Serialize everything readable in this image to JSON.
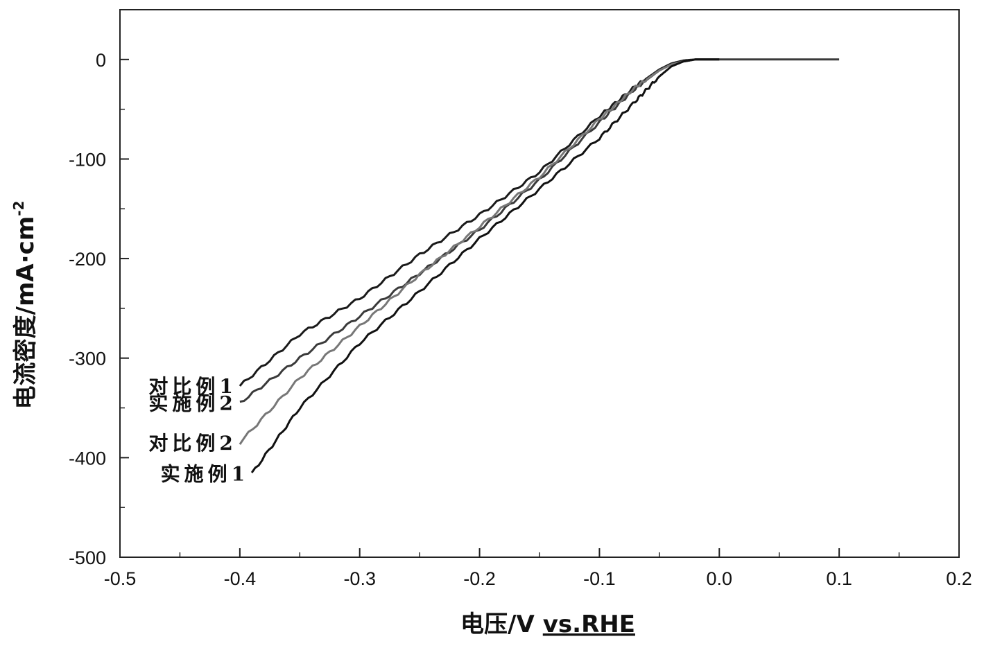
{
  "chart_data": {
    "type": "line",
    "title": "",
    "xlabel": "电压/V",
    "xlabel_suffix": "vs.RHE",
    "ylabel": "电流密度/mA·cm",
    "ylabel_superscript": "-2",
    "xlim": [
      -0.5,
      0.2
    ],
    "ylim": [
      -500,
      50
    ],
    "x_ticks": [
      -0.5,
      -0.4,
      -0.3,
      -0.2,
      -0.1,
      0.0,
      0.1,
      0.2
    ],
    "x_tick_labels": [
      "-0.5",
      "-0.4",
      "-0.3",
      "-0.2",
      "-0.1",
      "0.0",
      "0.1",
      "0.2"
    ],
    "y_ticks": [
      0,
      -100,
      -200,
      -300,
      -400,
      -500
    ],
    "y_tick_labels": [
      "0",
      "-100",
      "-200",
      "-300",
      "-400",
      "-500"
    ],
    "grid": false,
    "legend": "inline labels at left end of curves",
    "series": [
      {
        "name": "对比例1",
        "color": "#1a1a1a",
        "x": [
          -0.4,
          -0.35,
          -0.3,
          -0.25,
          -0.2,
          -0.15,
          -0.1,
          -0.07,
          -0.05,
          -0.04,
          -0.03,
          -0.02,
          0.0
        ],
        "y": [
          -328,
          -276,
          -240,
          -196,
          -156,
          -113,
          -57,
          -27,
          -10,
          -4,
          -1,
          0,
          0
        ]
      },
      {
        "name": "实施例2",
        "color": "#3a3a3a",
        "x": [
          -0.4,
          -0.35,
          -0.3,
          -0.25,
          -0.2,
          -0.15,
          -0.1,
          -0.07,
          -0.05,
          -0.04,
          -0.03,
          -0.02,
          0.0,
          0.1
        ],
        "y": [
          -345,
          -300,
          -258,
          -215,
          -171,
          -121,
          -63,
          -29,
          -11,
          -5,
          -2,
          0,
          0,
          0
        ]
      },
      {
        "name": "对比例2",
        "color": "#777777",
        "x": [
          -0.4,
          -0.35,
          -0.3,
          -0.25,
          -0.2,
          -0.15,
          -0.1,
          -0.07,
          -0.05,
          -0.04,
          -0.03,
          -0.02,
          0.0
        ],
        "y": [
          -385,
          -320,
          -268,
          -216,
          -168,
          -118,
          -60,
          -28,
          -11,
          -5,
          -2,
          0,
          0
        ]
      },
      {
        "name": "实施例1",
        "color": "#111111",
        "x": [
          -0.39,
          -0.35,
          -0.3,
          -0.25,
          -0.2,
          -0.15,
          -0.1,
          -0.07,
          -0.05,
          -0.04,
          -0.03,
          -0.02,
          0.0
        ],
        "y": [
          -416,
          -350,
          -285,
          -233,
          -180,
          -130,
          -79,
          -42,
          -17,
          -7,
          -2,
          0,
          0
        ]
      }
    ]
  }
}
